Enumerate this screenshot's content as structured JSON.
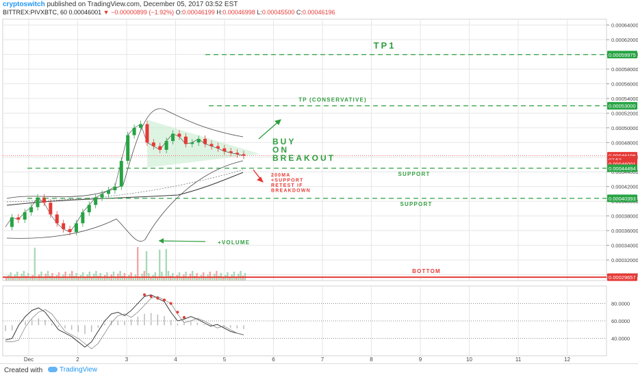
{
  "header": {
    "author": "cryptoswitch",
    "published_text": "published on TradingView.com, December 05, 2017 03:52 EST",
    "symbol": "BITTREX:PIVXBTC, 60",
    "last": "0.00046001",
    "change_arrow": "▼",
    "change": "−0.00000899 (−1.92%)",
    "open_label": "O:",
    "open": "0.00046199",
    "high_label": "H:",
    "high": "0.00046998",
    "low_label": "L:",
    "low": "0.00045500",
    "close_label": "C:",
    "close": "0.00046196"
  },
  "footer": {
    "created_with": "Created with",
    "brand": "TradingView",
    "brand_icon": "tradingview-logo-icon"
  },
  "colors": {
    "green": "#2e9e3e",
    "red": "#e53935",
    "grid": "#e6e6e6",
    "badge_green": "#26a343",
    "badge_red": "#e53935"
  },
  "chart_data": {
    "type": "candlestick",
    "price_axis": {
      "ticks": [
        "0.00064000",
        "0.00062000",
        "0.00060000",
        "0.00058000",
        "0.00056000",
        "0.00054000",
        "0.00052000",
        "0.00050000",
        "0.00048000",
        "0.00046000",
        "0.00044000",
        "0.00042000",
        "0.00040000",
        "0.00038000",
        "0.00036000",
        "0.00034000",
        "0.00032000",
        "0.00030000"
      ],
      "range": [
        0.000292,
        0.000648
      ]
    },
    "time_axis": {
      "ticks": [
        "Dec",
        "2",
        "3",
        "4",
        "5",
        "6",
        "7",
        "8",
        "9",
        "10",
        "11",
        "12"
      ]
    },
    "price_badges": [
      {
        "value": "0.00059975",
        "price": 0.00059975,
        "color": "green"
      },
      {
        "value": "0.00053000",
        "price": 0.00053,
        "color": "green"
      },
      {
        "value": "0.00046196",
        "price": 0.00046196,
        "color": "red"
      },
      {
        "value": "07:52",
        "price": 0.0004565,
        "color": "red"
      },
      {
        "value": "0.00046001",
        "price": 0.000451,
        "color": "red"
      },
      {
        "value": "0.00044494",
        "price": 0.00044494,
        "color": "green"
      },
      {
        "value": "0.00040393",
        "price": 0.00040393,
        "color": "green"
      },
      {
        "value": "0.00029657",
        "price": 0.00029657,
        "color": "red"
      }
    ],
    "levels": [
      {
        "label": "TP1",
        "price": 0.00059975,
        "color": "green"
      },
      {
        "label": "TP (CONSERVATIVE)",
        "price": 0.00053,
        "color": "green"
      },
      {
        "label": "SUPPORT",
        "price": 0.00044494,
        "color": "green"
      },
      {
        "label": "SUPPORT",
        "price": 0.00040393,
        "color": "green"
      },
      {
        "label": "BOTTOM",
        "price": 0.00029657,
        "color": "red"
      }
    ],
    "annotations": {
      "buy": [
        "BUY",
        "ON",
        "BREAKOUT"
      ],
      "breakdown": [
        "200MA",
        "+SUPPORT",
        "RETEST IF",
        "BREAKDOWN"
      ],
      "volume": "+VOLUME"
    },
    "series": [
      {
        "values": [
          0.000365,
          0.000378,
          0.000375,
          0.000385,
          0.000392,
          0.000405,
          0.000398,
          0.000382,
          0.00037,
          0.000362,
          0.000358,
          0.00037,
          0.000385,
          0.000395,
          0.000405,
          0.00041,
          0.000415,
          0.00042,
          0.000455,
          0.00049,
          0.0005,
          0.000505,
          0.00048,
          0.000475,
          0.00047,
          0.000482,
          0.000492,
          0.000488,
          0.000478,
          0.00048,
          0.000485,
          0.000478,
          0.000475,
          0.000472,
          0.000468,
          0.000466,
          0.000464,
          0.000462
        ]
      }
    ],
    "indicator": {
      "ticks": [
        "80.0000",
        "60.0000",
        "40.0000"
      ],
      "range": [
        20,
        100
      ],
      "values": [
        38,
        40,
        55,
        65,
        72,
        75,
        70,
        60,
        50,
        46,
        42,
        36,
        30,
        36,
        48,
        60,
        68,
        70,
        66,
        72,
        80,
        88,
        90,
        86,
        82,
        70,
        60,
        62,
        65,
        62,
        58,
        54,
        56,
        52,
        48,
        46,
        44
      ]
    }
  }
}
